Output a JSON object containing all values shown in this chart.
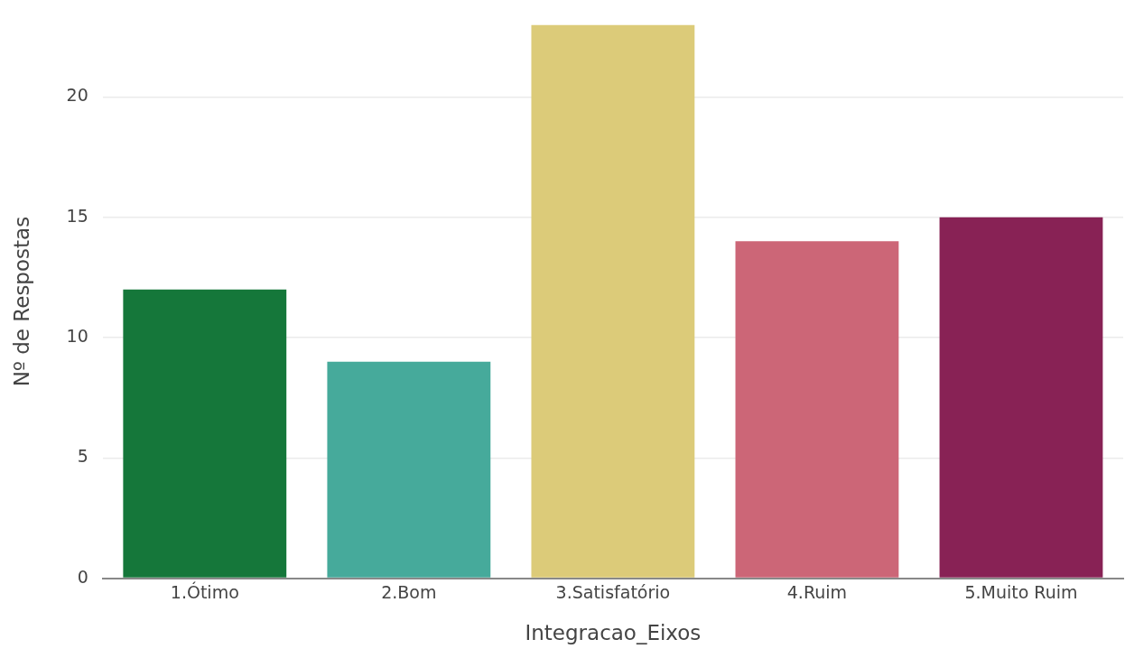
{
  "chart_data": {
    "type": "bar",
    "xlabel": "Integracao_Eixos",
    "ylabel": "Nº de Respostas",
    "categories": [
      "1.Ótimo",
      "2.Bom",
      "3.Satisfatório",
      "4.Ruim",
      "5.Muito Ruim"
    ],
    "values": [
      12,
      9,
      23,
      14,
      15
    ],
    "colors": [
      "#15773a",
      "#46aa9b",
      "#dccb79",
      "#cc6677",
      "#882255"
    ],
    "ylim": [
      0,
      23
    ],
    "yticks": [
      0,
      5,
      10,
      15,
      20
    ],
    "grid": "y",
    "legend": false
  }
}
